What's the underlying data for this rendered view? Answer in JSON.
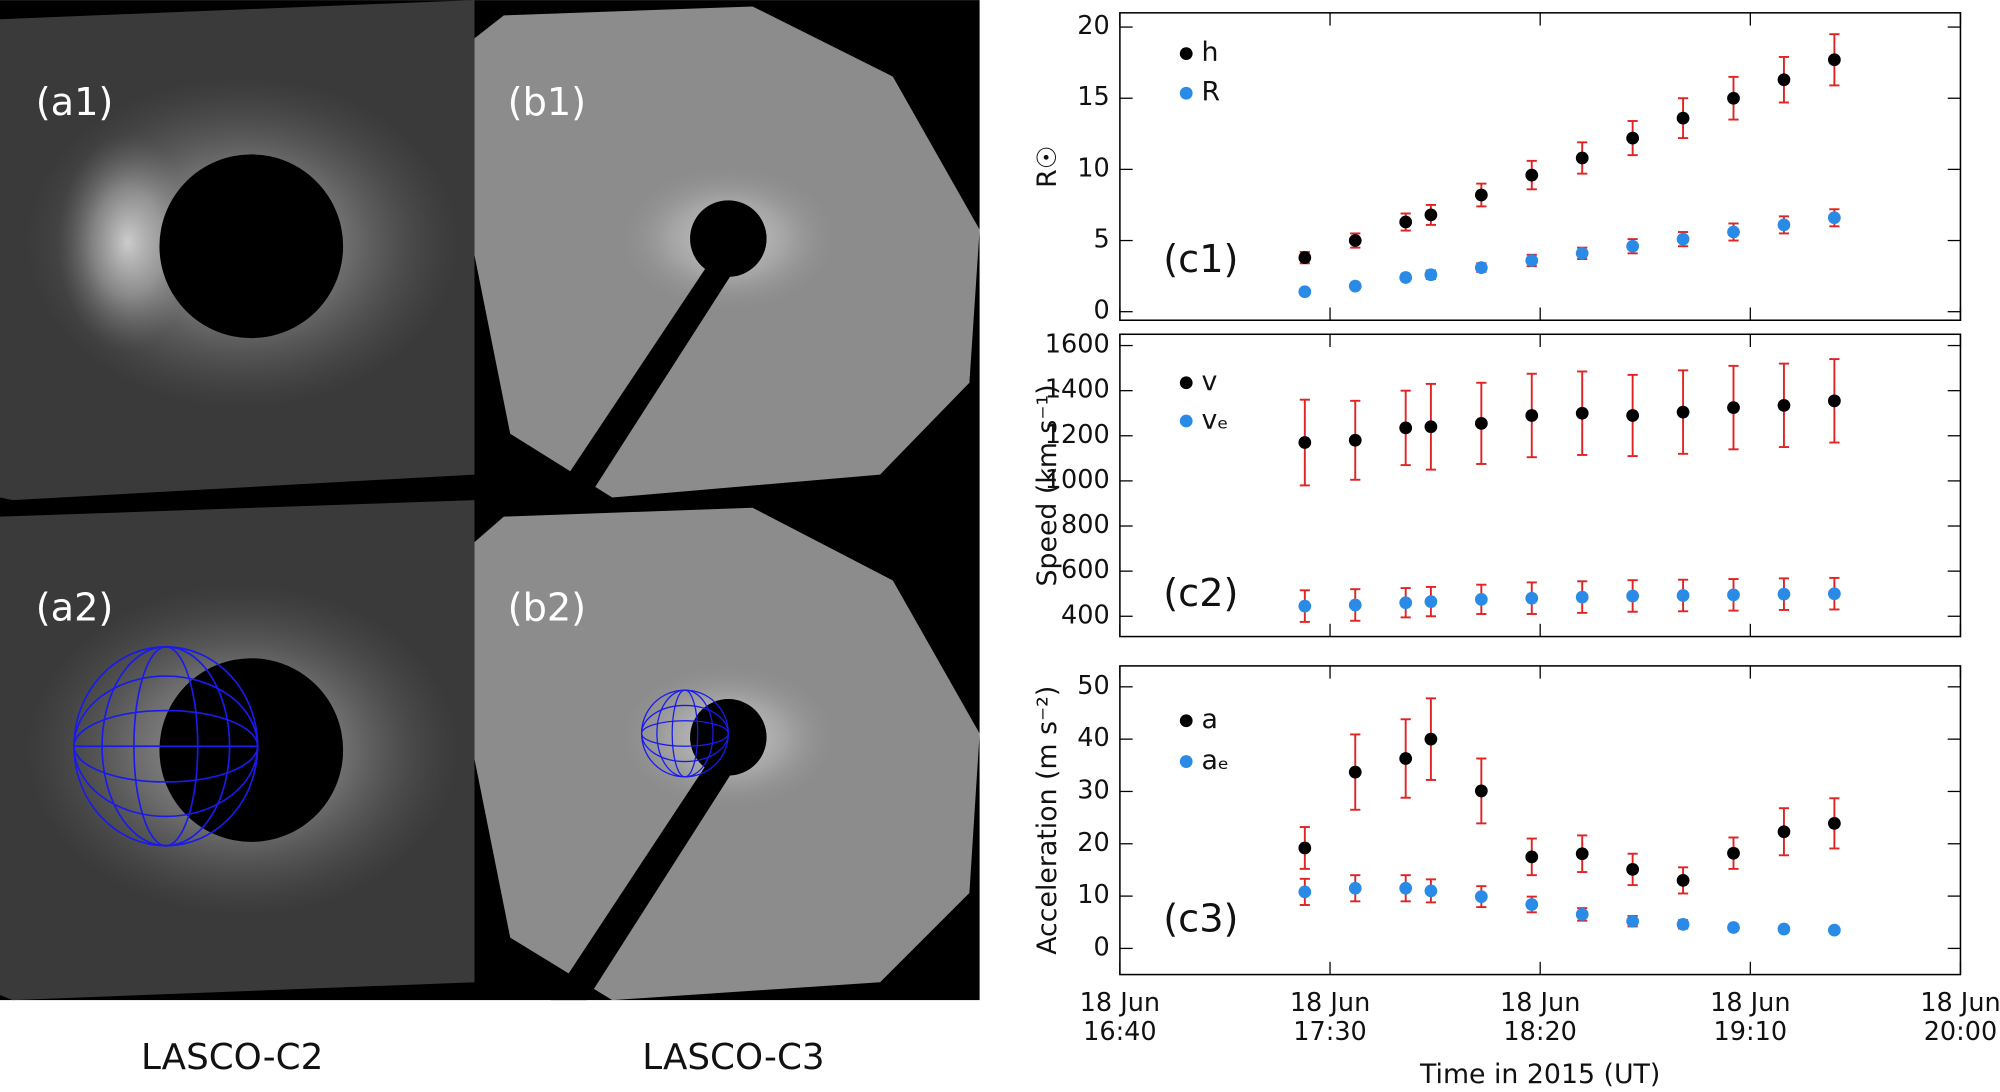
{
  "images": [
    {
      "label": "(a1)"
    },
    {
      "label": "(b1)"
    },
    {
      "label": "(a2)"
    },
    {
      "label": "(b2)"
    }
  ],
  "captions": [
    "LASCO-C2",
    "LASCO-C3"
  ],
  "chart_data": [
    {
      "type": "scatter",
      "panel_label": "(c1)",
      "ylabel": "R☉",
      "ylim": [
        -0.6,
        21
      ],
      "yticks": [
        0,
        5,
        10,
        15,
        20
      ],
      "xlim": [
        "16:40",
        "20:00"
      ],
      "xticks": [
        "16:40",
        "17:30",
        "18:20",
        "19:10",
        "20:00"
      ],
      "error_color": "#e02424",
      "x": [
        "17:24",
        "17:36",
        "17:48",
        "17:54",
        "18:06",
        "18:18",
        "18:30",
        "18:42",
        "18:54",
        "19:06",
        "19:18",
        "19:30"
      ],
      "series": [
        {
          "name": "h",
          "color": "#000000",
          "values": [
            3.8,
            5.0,
            6.3,
            6.8,
            8.2,
            9.6,
            10.8,
            12.2,
            13.6,
            15.0,
            16.3,
            17.7
          ],
          "errors": [
            0.4,
            0.5,
            0.6,
            0.7,
            0.8,
            1.0,
            1.1,
            1.2,
            1.4,
            1.5,
            1.6,
            1.8
          ]
        },
        {
          "name": "R",
          "color": "#2a8be6",
          "values": [
            1.4,
            1.8,
            2.4,
            2.6,
            3.1,
            3.6,
            4.1,
            4.6,
            5.1,
            5.6,
            6.1,
            6.6
          ],
          "errors": [
            0.2,
            0.2,
            0.2,
            0.3,
            0.3,
            0.4,
            0.4,
            0.5,
            0.5,
            0.6,
            0.6,
            0.6
          ]
        }
      ]
    },
    {
      "type": "scatter",
      "panel_label": "(c2)",
      "ylabel": "Speed (km s⁻¹)",
      "ylim": [
        310,
        1650
      ],
      "yticks": [
        400,
        600,
        800,
        1000,
        1200,
        1400,
        1600
      ],
      "xlim": [
        "16:40",
        "20:00"
      ],
      "xticks": [
        "16:40",
        "17:30",
        "18:20",
        "19:10",
        "20:00"
      ],
      "error_color": "#e02424",
      "x": [
        "17:24",
        "17:36",
        "17:48",
        "17:54",
        "18:06",
        "18:18",
        "18:30",
        "18:42",
        "18:54",
        "19:06",
        "19:18",
        "19:30"
      ],
      "series": [
        {
          "name": "v",
          "color": "#000000",
          "values": [
            1170,
            1180,
            1235,
            1240,
            1255,
            1290,
            1300,
            1290,
            1305,
            1325,
            1335,
            1355
          ],
          "errors": [
            190,
            175,
            165,
            190,
            180,
            185,
            185,
            180,
            185,
            185,
            185,
            185
          ]
        },
        {
          "name": "vₑ",
          "color": "#2a8be6",
          "values": [
            445,
            450,
            460,
            465,
            475,
            480,
            485,
            490,
            492,
            495,
            498,
            500
          ],
          "errors": [
            70,
            70,
            65,
            65,
            65,
            70,
            70,
            70,
            70,
            70,
            70,
            70
          ]
        }
      ]
    },
    {
      "type": "scatter",
      "panel_label": "(c3)",
      "ylabel": "Acceleration (m s⁻²)",
      "ylim": [
        -5,
        54
      ],
      "yticks": [
        0,
        10,
        20,
        30,
        40,
        50
      ],
      "xlim": [
        "16:40",
        "20:00"
      ],
      "xlabel": "Time in 2015 (UT)",
      "error_color": "#e02424",
      "xticks": [
        {
          "value": "16:40",
          "label": [
            "18 Jun",
            "16:40"
          ]
        },
        {
          "value": "17:30",
          "label": [
            "18 Jun",
            "17:30"
          ]
        },
        {
          "value": "18:20",
          "label": [
            "18 Jun",
            "18:20"
          ]
        },
        {
          "value": "19:10",
          "label": [
            "18 Jun",
            "19:10"
          ]
        },
        {
          "value": "20:00",
          "label": [
            "18 Jun",
            "20:00"
          ]
        }
      ],
      "x": [
        "17:24",
        "17:36",
        "17:48",
        "17:54",
        "18:06",
        "18:18",
        "18:30",
        "18:42",
        "18:54",
        "19:06",
        "19:18",
        "19:30"
      ],
      "series": [
        {
          "name": "a",
          "color": "#000000",
          "values": [
            19.2,
            33.7,
            36.3,
            40.0,
            30.1,
            17.5,
            18.1,
            15.1,
            13.0,
            18.2,
            22.3,
            23.9
          ],
          "errors": [
            4.0,
            7.2,
            7.5,
            7.8,
            6.2,
            3.5,
            3.5,
            3.0,
            2.5,
            3.0,
            4.5,
            4.8
          ]
        },
        {
          "name": "aₑ",
          "color": "#2a8be6",
          "values": [
            10.8,
            11.5,
            11.5,
            11.0,
            9.9,
            8.4,
            6.5,
            5.2,
            4.6,
            4.0,
            3.7,
            3.5
          ],
          "errors": [
            2.5,
            2.5,
            2.5,
            2.2,
            2.0,
            1.5,
            1.2,
            1.0,
            0.8,
            0.6,
            0.6,
            0.5
          ]
        }
      ]
    }
  ]
}
